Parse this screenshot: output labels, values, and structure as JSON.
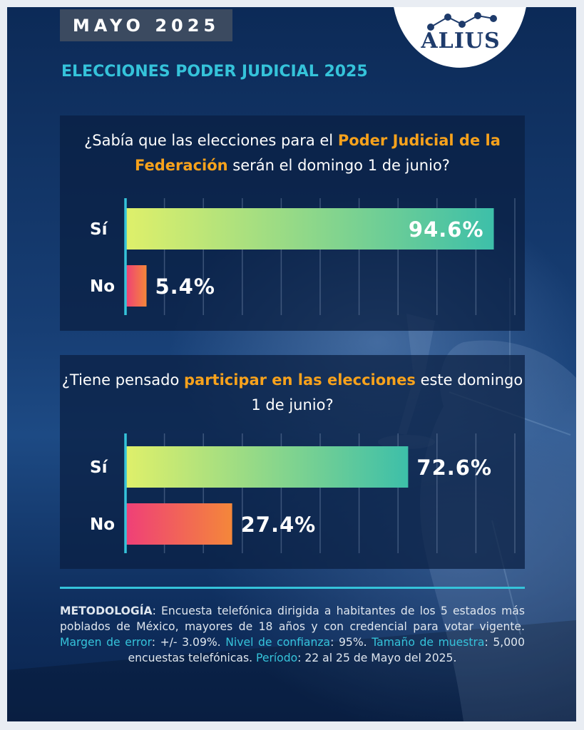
{
  "header": {
    "date_badge": "MAYO 2025",
    "brand": "ALIUS",
    "subtitle": "ELECCIONES PODER JUDICIAL 2025"
  },
  "colors": {
    "background": "#173e74",
    "accent_cyan": "#35c3da",
    "highlight_orange": "#f7a21c",
    "si_bar_start": "#dff06a",
    "si_bar_end": "#3dbfa9",
    "no_bar_start": "#ef3f78",
    "no_bar_end": "#f4873a"
  },
  "questions": [
    {
      "text_before": "¿Sabía que las elecciones para el ",
      "highlight": "Poder Judicial de la Federación",
      "text_after": " serán el domingo 1 de junio?"
    },
    {
      "text_before": "¿Tiene pensado ",
      "highlight": "participar en las elecciones",
      "text_after": " este domingo 1 de junio?"
    }
  ],
  "chart_data": [
    {
      "type": "bar",
      "orientation": "horizontal",
      "categories": [
        "Sí",
        "No"
      ],
      "values": [
        94.6,
        5.4
      ],
      "value_labels": [
        "94.6%",
        "5.4%"
      ],
      "xlim": [
        0,
        100
      ],
      "grid": true
    },
    {
      "type": "bar",
      "orientation": "horizontal",
      "categories": [
        "Sí",
        "No"
      ],
      "values": [
        72.6,
        27.4
      ],
      "value_labels": [
        "72.6%",
        "27.4%"
      ],
      "xlim": [
        0,
        100
      ],
      "grid": true
    }
  ],
  "methodology": {
    "label": "METODOLOGÍA",
    "text": ": Encuesta telefónica dirigida a habitantes de los 5 estados más poblados de México, mayores de 18 años y con credencial para votar vigente. ",
    "margin_label": "Margen de error",
    "margin_value": ": +/- 3.09%. ",
    "confidence_label": "Nivel de confianza",
    "confidence_value": ": 95%. ",
    "sample_label": "Tamaño de muestra",
    "sample_value": ": 5,000 encuestas telefónicas. ",
    "period_label": "Período",
    "period_value": ": 22 al 25 de Mayo del 2025."
  }
}
